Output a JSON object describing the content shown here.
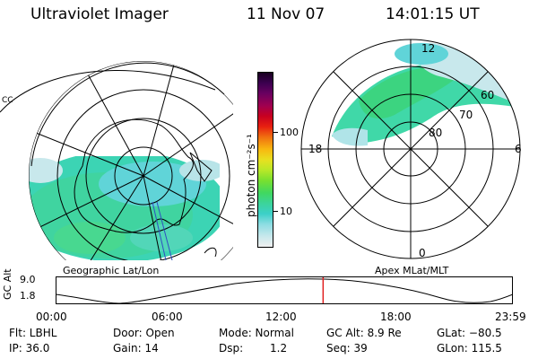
{
  "header": {
    "instrument": "Ultraviolet Imager",
    "date": "11 Nov 07",
    "time": "14:01:15 UT"
  },
  "colorbar": {
    "ticks": [
      "100",
      "10"
    ],
    "unit": "photon cm⁻²s⁻¹",
    "colors": [
      "#f0f0f0",
      "#c8e8ec",
      "#8cdce2",
      "#3cd0c8",
      "#3cd49a",
      "#40d860",
      "#78e030",
      "#b8e828",
      "#e8e020",
      "#f8b810",
      "#f07010",
      "#e82010",
      "#c80020",
      "#a00050",
      "#6a0060",
      "#3c0050",
      "#180020"
    ]
  },
  "geo_map": {
    "label": "Geographic Lat/Lon"
  },
  "mag_map": {
    "label": "Apex MLat/MLT",
    "mlt_labels": {
      "top": "12",
      "left": "18",
      "right": "6",
      "bottom": "0"
    },
    "lat_labels": [
      "60",
      "70",
      "80"
    ]
  },
  "altitude_plot": {
    "axis_title": "GC Alt",
    "y_ticks": [
      "9.0",
      "1.8"
    ],
    "time_ticks": [
      "00:00",
      "06:00",
      "12:00",
      "18:00",
      "23:59"
    ],
    "current_time_fraction": 0.585
  },
  "info": {
    "filter": "Flt: LBHL",
    "door": "Door: Open",
    "mode": "Mode: Normal",
    "gc_alt": "GC Alt: 8.9 Re",
    "glat": "GLat: −80.5",
    "ip": "IP: 36.0",
    "gain": "Gain: 14",
    "dsp_label": "Dsp:",
    "dsp_value": "1.2",
    "seq": "Seq: 39",
    "glon": "GLon: 115.5"
  }
}
